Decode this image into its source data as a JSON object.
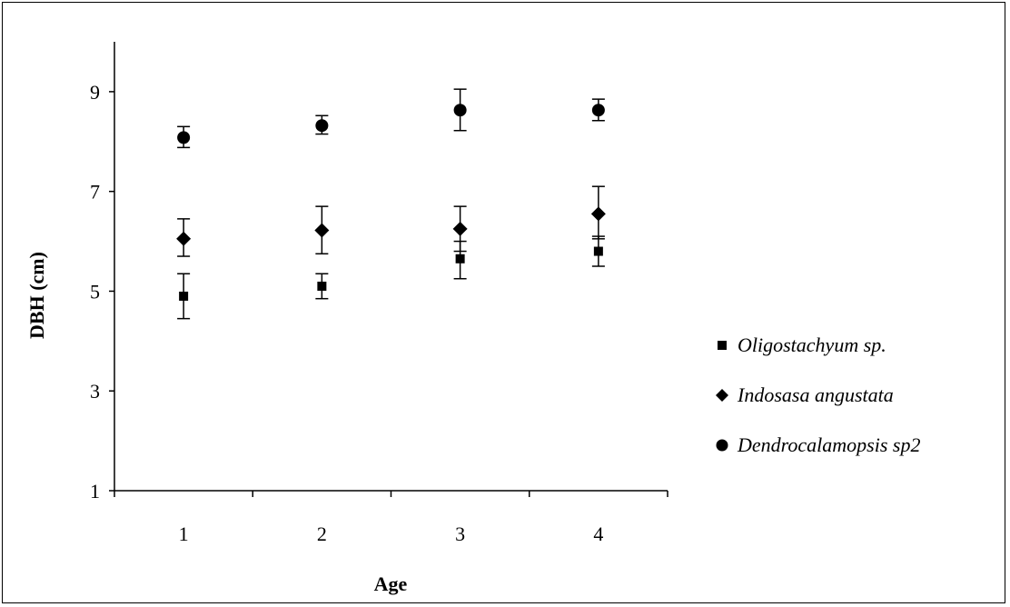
{
  "chart_data": {
    "type": "scatter",
    "title": "",
    "xlabel": "Age",
    "ylabel": "DBH (cm)",
    "xlim": [
      0.5,
      4.5
    ],
    "ylim": [
      1,
      10
    ],
    "x_ticks": [
      "1",
      "2",
      "3",
      "4"
    ],
    "y_ticks": [
      "1",
      "3",
      "5",
      "7",
      "9"
    ],
    "grid": false,
    "legend_position": "right",
    "series": [
      {
        "name": "Oligostachyum sp.",
        "marker": "square",
        "color": "#000000",
        "x": [
          1,
          2,
          3,
          4
        ],
        "y": [
          4.9,
          5.1,
          5.65,
          5.8
        ],
        "err_low": [
          4.45,
          4.85,
          5.25,
          5.5
        ],
        "err_high": [
          5.35,
          5.35,
          6.0,
          6.1
        ]
      },
      {
        "name": "Indosasa angustata",
        "marker": "diamond",
        "color": "#000000",
        "x": [
          1,
          2,
          3,
          4
        ],
        "y": [
          6.05,
          6.22,
          6.25,
          6.55
        ],
        "err_low": [
          5.7,
          5.75,
          5.8,
          6.05
        ],
        "err_high": [
          6.45,
          6.7,
          6.7,
          7.1
        ]
      },
      {
        "name": "Dendrocalamopsis sp2",
        "marker": "circle",
        "color": "#000000",
        "x": [
          1,
          2,
          3,
          4
        ],
        "y": [
          8.08,
          8.32,
          8.63,
          8.63
        ],
        "err_low": [
          7.88,
          8.15,
          8.22,
          8.42
        ],
        "err_high": [
          8.3,
          8.52,
          9.05,
          8.85
        ]
      }
    ]
  }
}
